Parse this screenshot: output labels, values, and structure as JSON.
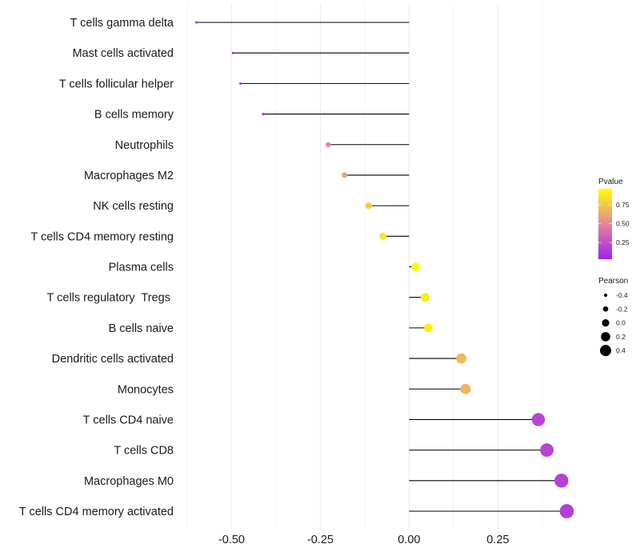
{
  "chart_data": {
    "type": "lollipop",
    "title": "",
    "xlabel": "",
    "ylabel": "",
    "xlim": [
      -0.625,
      0.47
    ],
    "x_ticks": [
      -0.5,
      -0.25,
      0.0,
      0.25
    ],
    "x_tick_labels": [
      "-0.50",
      "-0.25",
      "0.00",
      "0.25"
    ],
    "x_minor_ticks": [
      -0.625,
      -0.375,
      -0.125,
      0.125,
      0.375
    ],
    "grid": true,
    "baseline": 0,
    "categories": [
      "T cells gamma delta",
      "Mast cells activated",
      "T cells follicular helper",
      "B cells memory",
      "Neutrophils",
      "Macrophages M2",
      "NK cells resting",
      "T cells CD4 memory resting",
      "Plasma cells",
      "T cells regulatory  Tregs ",
      "B cells naive",
      "Dendritic cells activated",
      "Monocytes",
      "T cells CD4 naive",
      "T cells CD8",
      "Macrophages M0",
      "T cells CD4 memory activated"
    ],
    "series": [
      {
        "name": "Pearson",
        "values": [
          -0.599,
          -0.496,
          -0.475,
          -0.411,
          -0.228,
          -0.182,
          -0.114,
          -0.074,
          0.019,
          0.045,
          0.054,
          0.147,
          0.159,
          0.364,
          0.388,
          0.429,
          0.444
        ]
      },
      {
        "name": "Pvalue",
        "values": [
          0.06,
          0.09,
          0.1,
          0.12,
          0.5,
          0.62,
          0.78,
          0.86,
          0.95,
          0.9,
          0.9,
          0.7,
          0.68,
          0.2,
          0.19,
          0.18,
          0.17
        ]
      }
    ],
    "color_legend": {
      "title": "Pvalue",
      "range": [
        0.03,
        0.96
      ],
      "ticks": [
        0.75,
        0.5,
        0.25
      ],
      "tick_labels": [
        "0.75",
        "0.50",
        "0.25"
      ],
      "low_color": "#a020f0",
      "mid_color": "#e3869c",
      "high_color": "#ffff00"
    },
    "size_legend": {
      "title": "Pearson",
      "values": [
        -0.4,
        -0.2,
        0.0,
        0.2,
        0.4
      ],
      "labels": [
        "-0.4",
        "-0.2",
        "0.0",
        "0.2",
        "0.4"
      ]
    },
    "legend_position": "right",
    "colors": {
      "segment": "#000000",
      "grid": "#ebebeb",
      "legend_dot": "#000000"
    }
  }
}
